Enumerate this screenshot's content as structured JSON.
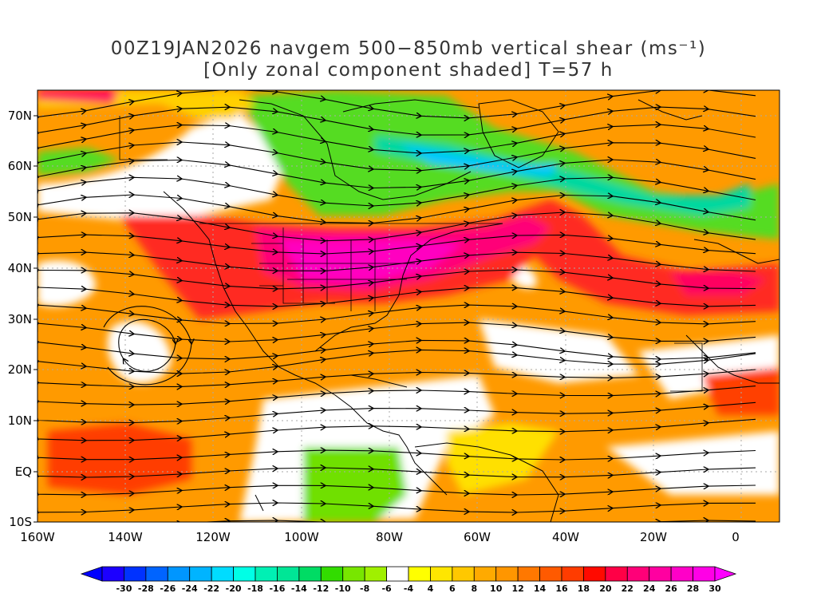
{
  "title_line1": "00Z19JAN2026 navgem 500−850mb vertical shear (ms⁻¹)",
  "title_line2": "[Only zonal component shaded] T=57 h",
  "lat_labels": [
    "70N",
    "60N",
    "50N",
    "40N",
    "30N",
    "20N",
    "10N",
    "EQ",
    "10S"
  ],
  "lon_labels": [
    "160W",
    "140W",
    "120W",
    "100W",
    "80W",
    "60W",
    "40W",
    "20W",
    "0"
  ],
  "colorbar": {
    "labels": [
      "-30",
      "-28",
      "-26",
      "-24",
      "-22",
      "-20",
      "-18",
      "-16",
      "-14",
      "-12",
      "-10",
      "-8",
      "-6",
      "-4",
      "4",
      "6",
      "8",
      "10",
      "12",
      "14",
      "16",
      "18",
      "20",
      "22",
      "24",
      "26",
      "28",
      "30"
    ],
    "colors": [
      "#1c00ff",
      "#0032ff",
      "#0064ff",
      "#0096ff",
      "#00b4ff",
      "#00dcff",
      "#00ffe6",
      "#00f0b4",
      "#00e696",
      "#00dc64",
      "#32dc00",
      "#78e600",
      "#a0f000",
      "#ffffff",
      "#ffff00",
      "#ffe600",
      "#ffc800",
      "#ffaa00",
      "#ff9600",
      "#ff7800",
      "#ff5a00",
      "#ff3c00",
      "#ff0a00",
      "#ff0046",
      "#ff0078",
      "#ff00a0",
      "#ff00c8",
      "#ff00e6"
    ],
    "under_color": "#0000ff",
    "over_color": "#ff00ff"
  }
}
